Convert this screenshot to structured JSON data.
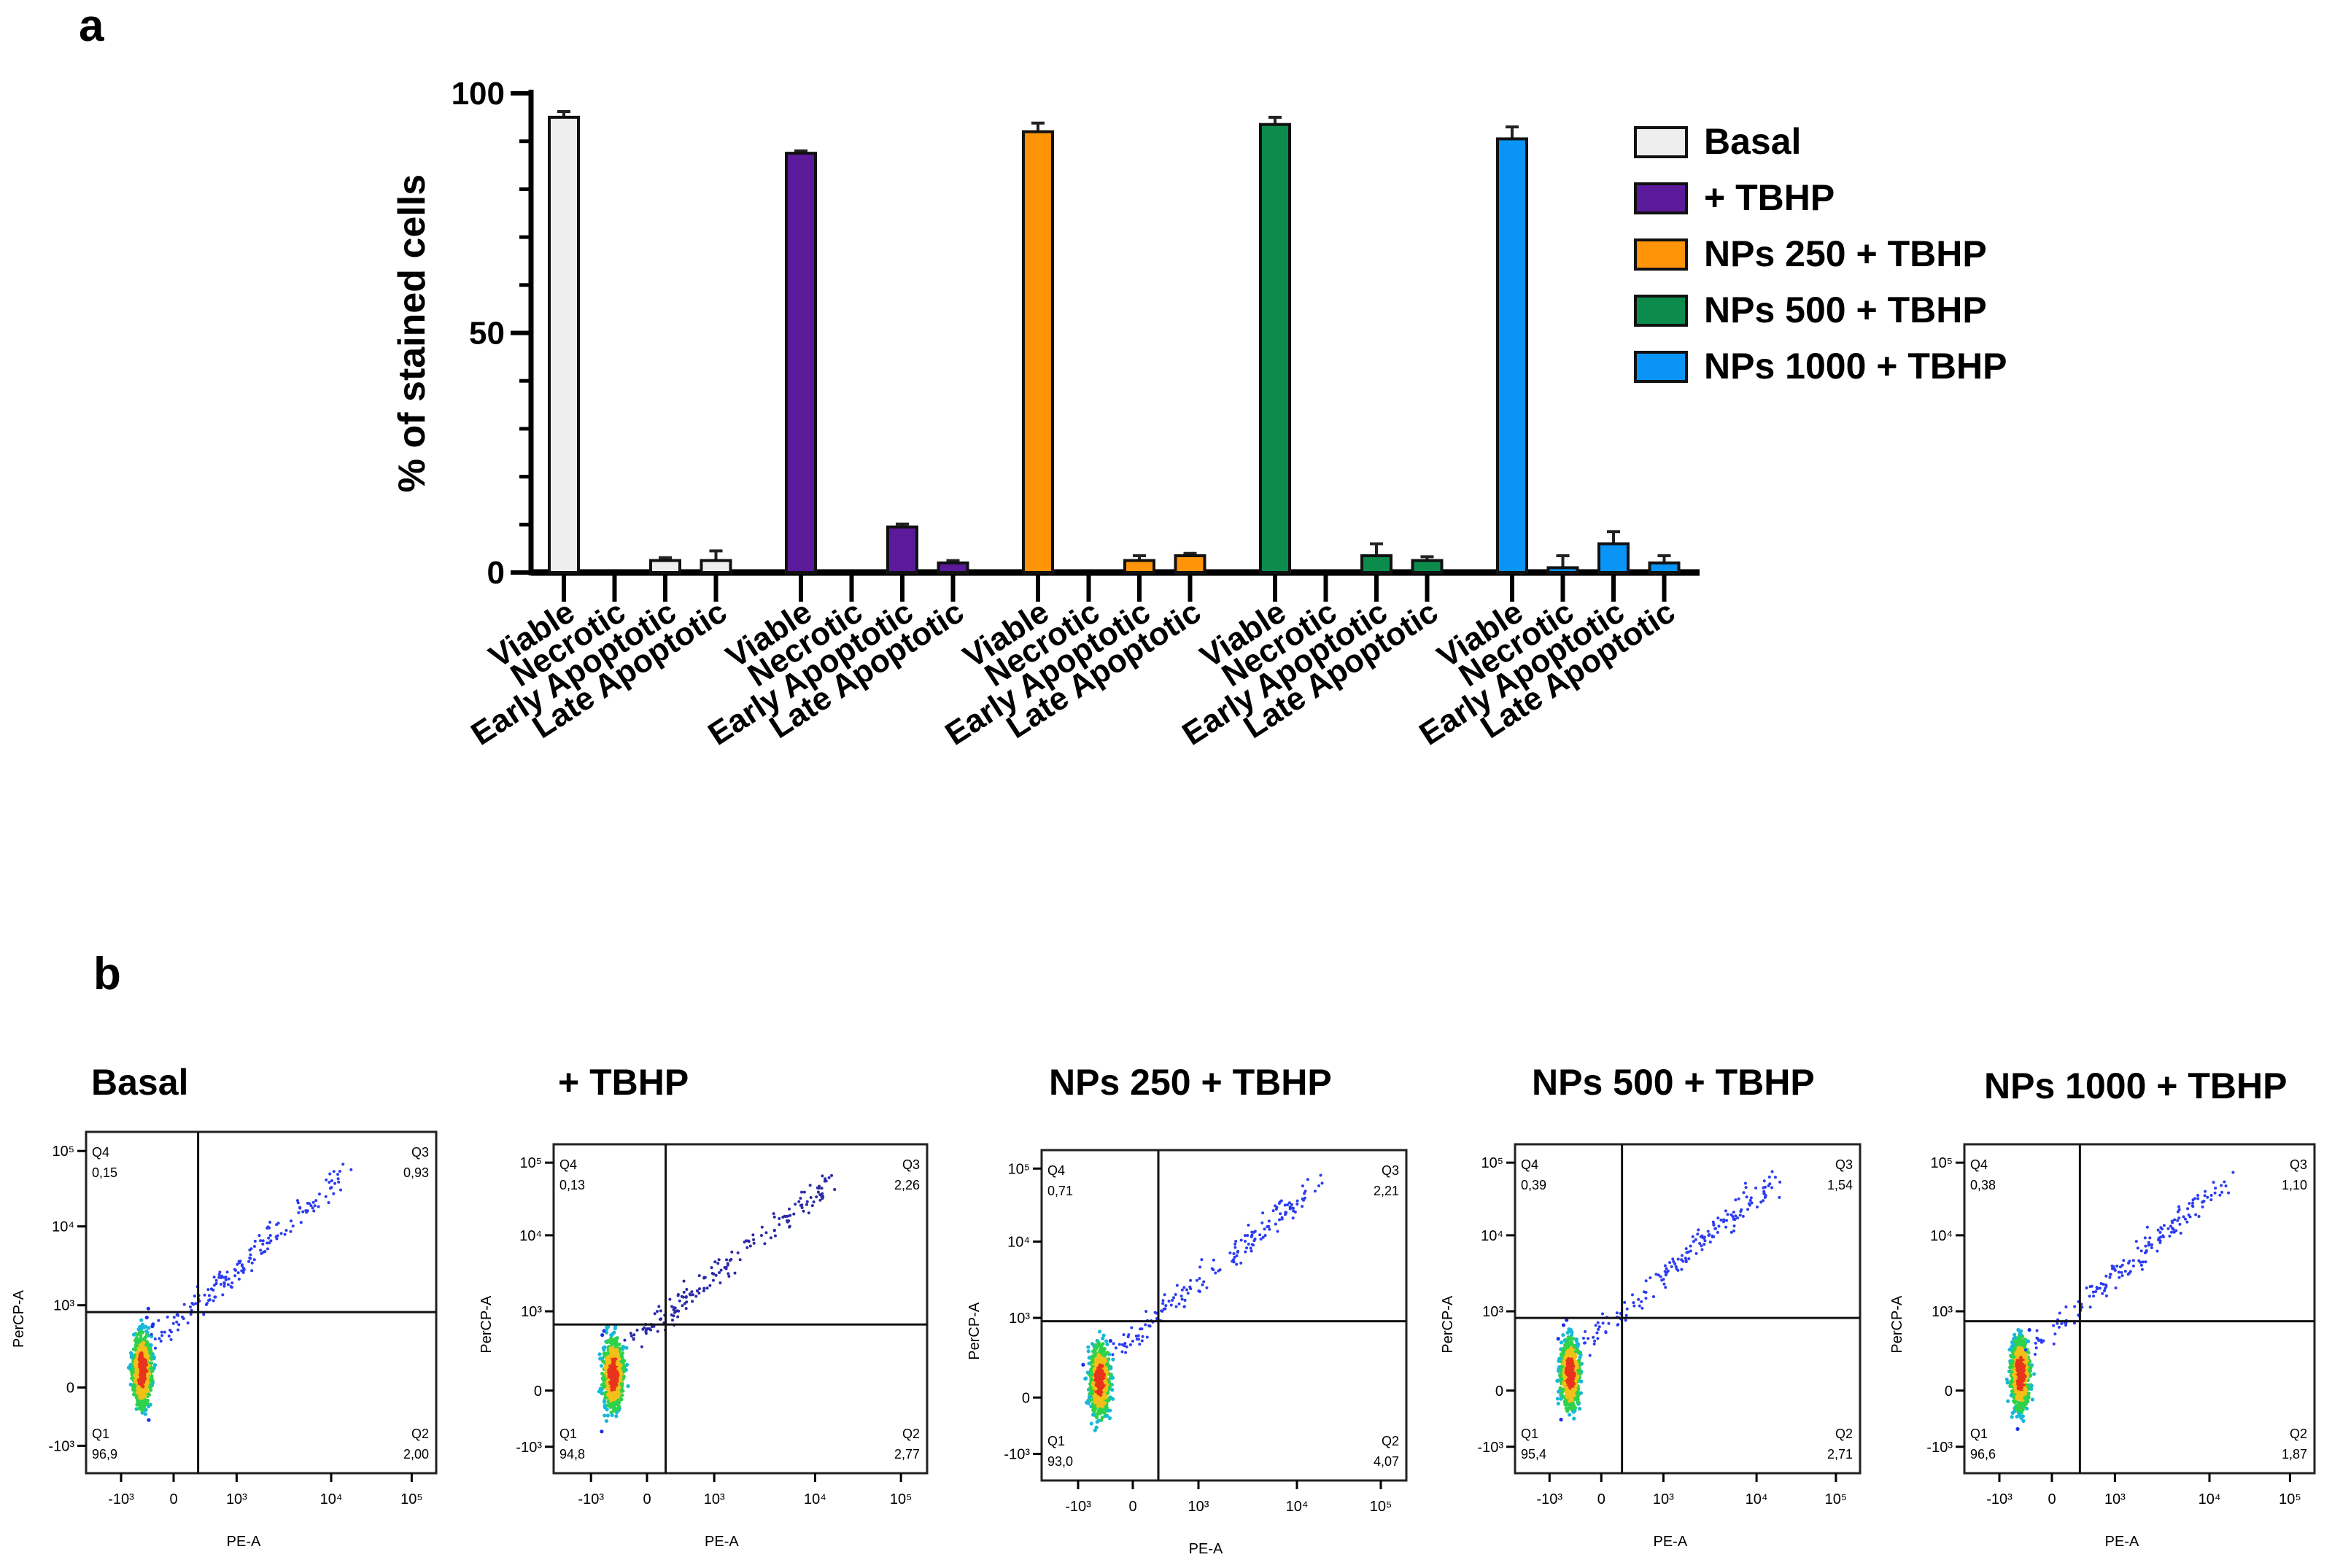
{
  "panel_labels": {
    "a": "a",
    "b": "b"
  },
  "chart_data": {
    "type": "bar",
    "title": "",
    "xlabel": "",
    "ylabel": "% of stained cells",
    "ylim": [
      0,
      100
    ],
    "yticks": [
      "0",
      "50",
      "100"
    ],
    "ytick_values": [
      0,
      50,
      100
    ],
    "categories": [
      "Viable",
      "Necrotic",
      "Early Apoptotic",
      "Late Apoptotic"
    ],
    "legend_position": "top-right",
    "series": [
      {
        "name": "Basal",
        "color": "#eeeeee",
        "values": [
          95,
          0,
          2.5,
          2.5
        ],
        "errors": [
          1.2,
          0,
          0.6,
          2
        ]
      },
      {
        "name": "+ TBHP",
        "color": "#5b1a9a",
        "values": [
          87.5,
          0,
          9.5,
          2
        ],
        "errors": [
          0.5,
          0,
          0.6,
          0.5
        ]
      },
      {
        "name": "NPs 250 + TBHP",
        "color": "#ff9408",
        "values": [
          92,
          0,
          2.5,
          3.5
        ],
        "errors": [
          1.8,
          0,
          1,
          0.5
        ]
      },
      {
        "name": "NPs 500 + TBHP",
        "color": "#0b8c4c",
        "values": [
          93.5,
          0,
          3.5,
          2.5
        ],
        "errors": [
          1.5,
          0,
          2.5,
          0.8
        ]
      },
      {
        "name": "NPs 1000 + TBHP",
        "color": "#0a94f5",
        "values": [
          90.5,
          1,
          6,
          2
        ],
        "errors": [
          2.5,
          2.5,
          2.5,
          1.5
        ]
      }
    ]
  },
  "flow_panels": [
    {
      "title": "Basal",
      "q1": "96,9",
      "q2": "2,00",
      "q3": "0,93",
      "q4": "0,15"
    },
    {
      "title": "+ TBHP",
      "q1": "94,8",
      "q2": "2,77",
      "q3": "2,26",
      "q4": "0,13"
    },
    {
      "title": "NPs 250 + TBHP",
      "q1": "93,0",
      "q2": "4,07",
      "q3": "2,21",
      "q4": "0,71"
    },
    {
      "title": "NPs 500 + TBHP",
      "q1": "95,4",
      "q2": "2,71",
      "q3": "1,54",
      "q4": "0,39"
    },
    {
      "title": "NPs 1000 + TBHP",
      "q1": "96,6",
      "q2": "1,87",
      "q3": "1,10",
      "q4": "0,38"
    }
  ],
  "flow_axes": {
    "x_label": "PE-A",
    "y_label": "PerCP-A",
    "quadrant_names": [
      "Q1",
      "Q2",
      "Q3",
      "Q4"
    ],
    "ticks": [
      "-10³",
      "0",
      "10³",
      "10⁴",
      "10⁵"
    ]
  }
}
